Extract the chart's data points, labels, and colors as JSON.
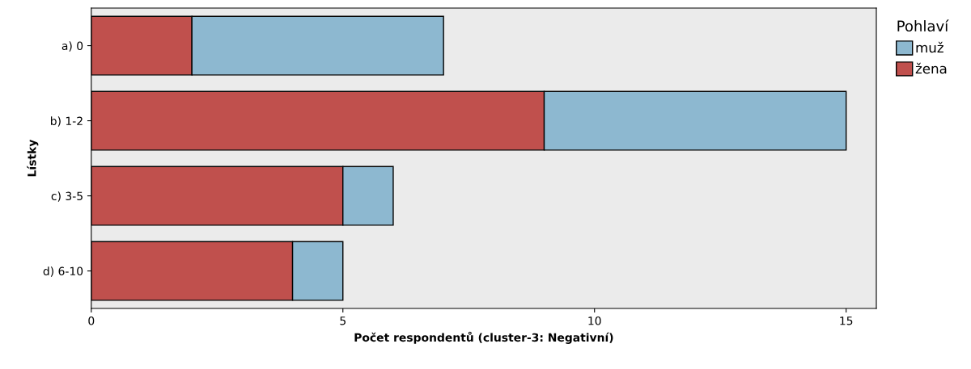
{
  "chart_data": {
    "type": "bar",
    "orientation": "horizontal",
    "stacked": true,
    "xlabel": "Počet respondentů (cluster-3: Negativní)",
    "ylabel": "Lístky",
    "legend_title": "Pohlaví",
    "categories": [
      "a) 0",
      "b) 1-2",
      "c) 3-5",
      "d) 6-10"
    ],
    "series": [
      {
        "name": "žena",
        "color": "#c0504d",
        "values": [
          2,
          9,
          5,
          4
        ]
      },
      {
        "name": "muž",
        "color": "#8db8d0",
        "values": [
          5,
          6,
          1,
          1
        ]
      }
    ],
    "xlim": [
      0,
      15.6
    ],
    "xticks": [
      0,
      5,
      10,
      15
    ],
    "grid": false,
    "legend": "right"
  }
}
